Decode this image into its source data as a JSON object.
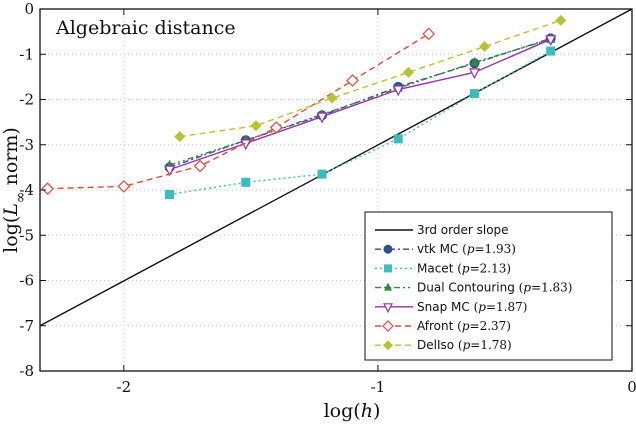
{
  "chart_data": {
    "type": "line",
    "title": "Algebraic distance",
    "xlabel_prefix": "log(",
    "xlabel_var": "h",
    "xlabel_suffix": ")",
    "ylabel_prefix": "log(",
    "ylabel_var": "L",
    "ylabel_sub": "∞",
    "ylabel_suffix": " norm)",
    "xlim": [
      -2.33,
      0
    ],
    "ylim": [
      -8,
      0
    ],
    "xticks": [
      -2,
      -1,
      0
    ],
    "yticks": [
      0,
      -1,
      -2,
      -3,
      -4,
      -5,
      -6,
      -7,
      -8
    ],
    "xtick_labels": [
      "-2",
      "-1",
      "0"
    ],
    "ytick_labels": [
      "0",
      "-1",
      "-2",
      "-3",
      "-4",
      "-5",
      "-6",
      "-7",
      "-8"
    ],
    "grid": true,
    "legend_position": "bottom-right",
    "reference_line": {
      "name": "3rd order slope",
      "color": "#111111",
      "points": [
        [
          -2.33,
          -7.0
        ],
        [
          0,
          0
        ]
      ]
    },
    "series": [
      {
        "key": "vtk",
        "name": "vtk MC",
        "p_label": "p",
        "p_value": "=1.93",
        "color": "#2f4f8f",
        "dash": "6,3,2,3",
        "marker": "circle",
        "x": [
          -1.82,
          -1.52,
          -1.22,
          -0.92,
          -0.62,
          -0.32
        ],
        "y": [
          -3.5,
          -2.9,
          -2.35,
          -1.72,
          -1.2,
          -0.65
        ]
      },
      {
        "key": "macet",
        "name": "Macet",
        "p_label": "p",
        "p_value": "=2.13",
        "color": "#3cbcbc",
        "dash": "2,3",
        "marker": "square",
        "x": [
          -1.82,
          -1.52,
          -1.22,
          -0.92,
          -0.62,
          -0.32
        ],
        "y": [
          -4.1,
          -3.83,
          -3.65,
          -2.87,
          -1.87,
          -0.93
        ]
      },
      {
        "key": "dual",
        "name": "Dual Contouring",
        "p_label": "p",
        "p_value": "=1.83",
        "color": "#2e8b3e",
        "dash": "6,3,2,3,2,3",
        "marker": "triangle",
        "x": [
          -1.82,
          -1.52,
          -1.22,
          -0.92,
          -0.62,
          -0.32
        ],
        "y": [
          -3.45,
          -2.9,
          -2.33,
          -1.75,
          -1.18,
          -0.67
        ]
      },
      {
        "key": "snap",
        "name": "Snap MC",
        "p_label": "p",
        "p_value": "=1.87",
        "color": "#9b30b0",
        "dash": "",
        "marker": "triangle-down",
        "x": [
          -1.82,
          -1.52,
          -1.22,
          -0.92,
          -0.62,
          -0.32
        ],
        "y": [
          -3.55,
          -2.97,
          -2.38,
          -1.78,
          -1.4,
          -0.67
        ]
      },
      {
        "key": "afront",
        "name": "Afront",
        "p_label": "p",
        "p_value": "=2.37",
        "color": "#e8463a",
        "dash": "6,4",
        "marker": "diamond-open",
        "x": [
          -2.3,
          -2.0,
          -1.7,
          -1.4,
          -1.1,
          -0.8
        ],
        "y": [
          -3.97,
          -3.92,
          -3.47,
          -2.62,
          -1.58,
          -0.55
        ]
      },
      {
        "key": "deliso",
        "name": "DelIso",
        "p_label": "p",
        "p_value": "=1.78",
        "color": "#b9c234",
        "dash": "6,4",
        "marker": "diamond",
        "x": [
          -1.78,
          -1.48,
          -1.18,
          -0.88,
          -0.58,
          -0.28
        ],
        "y": [
          -2.82,
          -2.58,
          -1.97,
          -1.4,
          -0.83,
          -0.25
        ]
      }
    ]
  }
}
